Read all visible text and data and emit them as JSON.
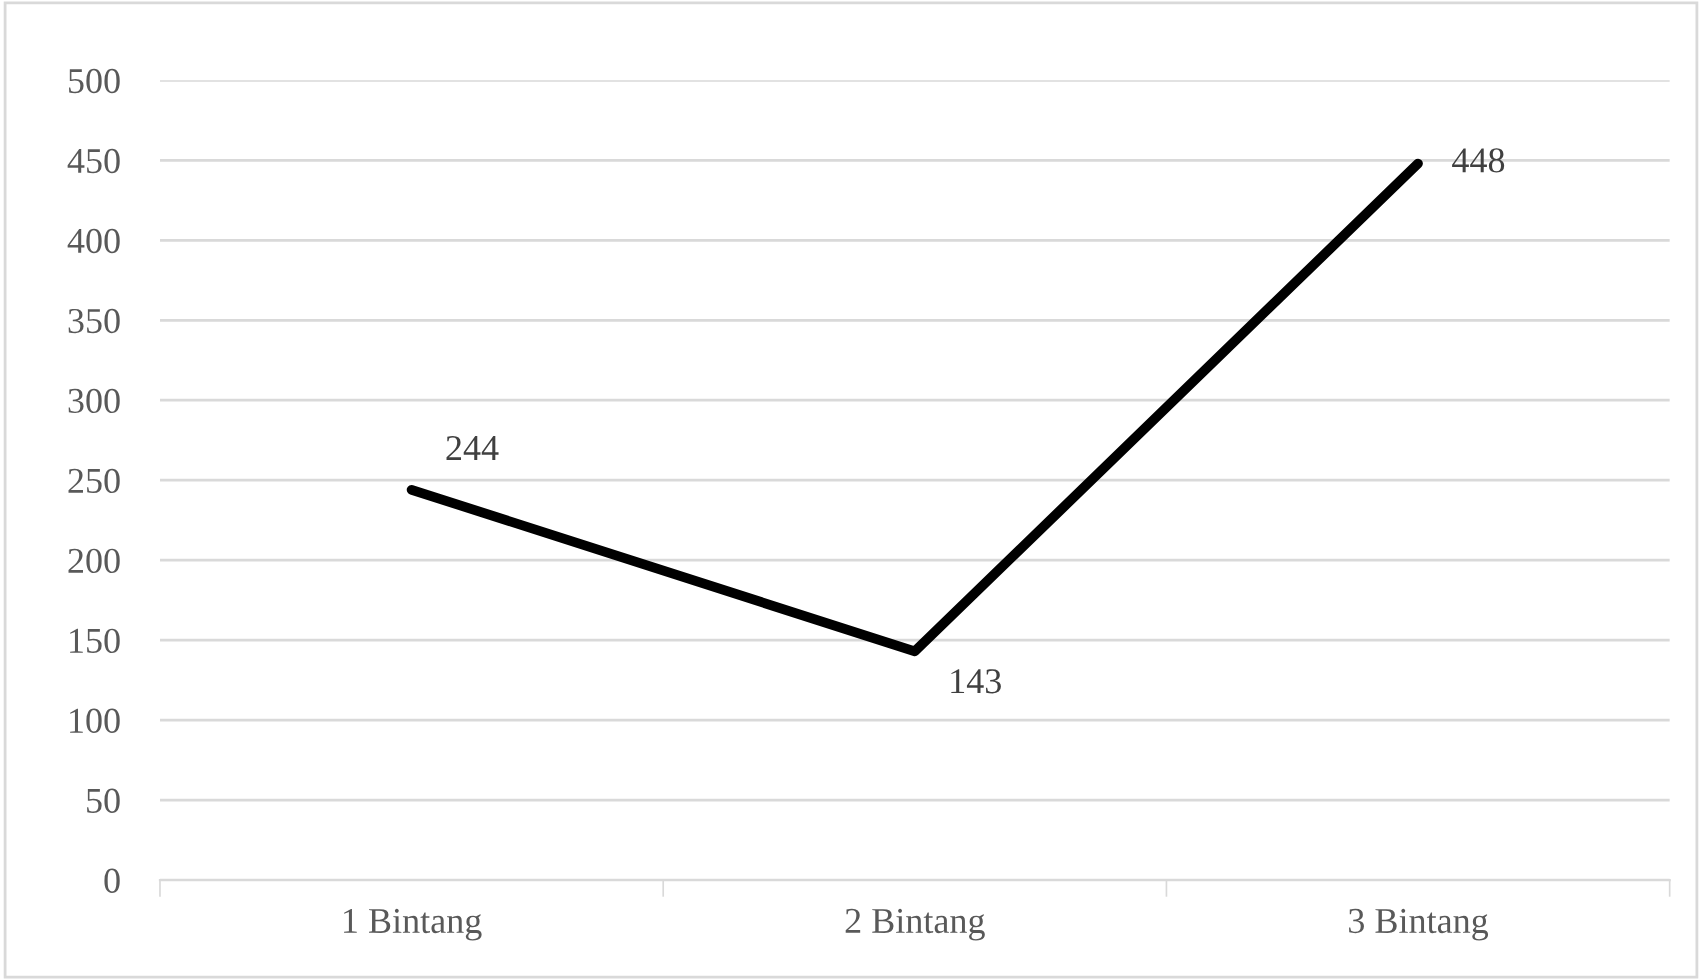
{
  "chart_data": {
    "type": "line",
    "categories": [
      "1 Bintang",
      "2 Bintang",
      "3 Bintang"
    ],
    "series": [
      {
        "color": "#000000",
        "values": [
          244,
          143,
          448
        ]
      }
    ],
    "ylim": [
      0,
      500
    ],
    "yticks": [
      0,
      50,
      100,
      150,
      200,
      250,
      300,
      350,
      400,
      450,
      500
    ],
    "grid": "y",
    "legend": false,
    "marker": "none",
    "line_style": "solid",
    "data_labels": true
  }
}
